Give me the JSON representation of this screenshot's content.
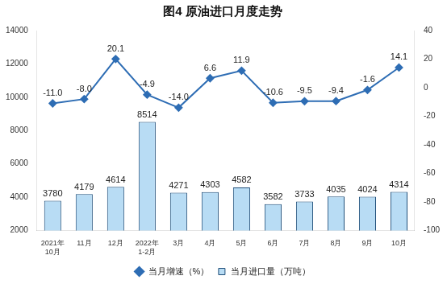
{
  "chart_data": {
    "type": "bar",
    "title": "图4 原油进口月度走势",
    "categories": [
      "2021年\n10月",
      "11月",
      "12月",
      "2022年\n1-2月",
      "3月",
      "4月",
      "5月",
      "6月",
      "7月",
      "8月",
      "9月",
      "10月"
    ],
    "series": [
      {
        "name": "当月进口量（万吨）",
        "type": "bar",
        "color": "#b8dcf4",
        "values": [
          3780,
          4179,
          4614,
          8514,
          4271,
          4303,
          4582,
          3582,
          3733,
          4035,
          4024,
          4314
        ]
      },
      {
        "name": "当月增速（%）",
        "type": "line",
        "axis": "y2",
        "color": "#2e6db4",
        "marker": "diamond",
        "line_style": "solid",
        "values": [
          -11.0,
          -8.0,
          20.1,
          -4.9,
          -14.0,
          6.6,
          11.9,
          -10.6,
          -9.5,
          -9.4,
          -1.6,
          14.1
        ],
        "value_labels": [
          "-11.0",
          "-8.0",
          "20.1",
          "-4.9",
          "-14.0",
          "6.6",
          "11.9",
          "-10.6",
          "-9.5",
          "-9.4",
          "-1.6",
          "14.1"
        ]
      }
    ],
    "ylim": [
      2000,
      14000
    ],
    "yticks": [
      2000,
      4000,
      6000,
      8000,
      10000,
      12000,
      14000
    ],
    "y2lim": [
      -100,
      40
    ],
    "y2ticks": [
      -100,
      -80,
      -60,
      -40,
      -20,
      0,
      20,
      40
    ],
    "grid": false,
    "legend": "bottom",
    "data_labels": true
  }
}
